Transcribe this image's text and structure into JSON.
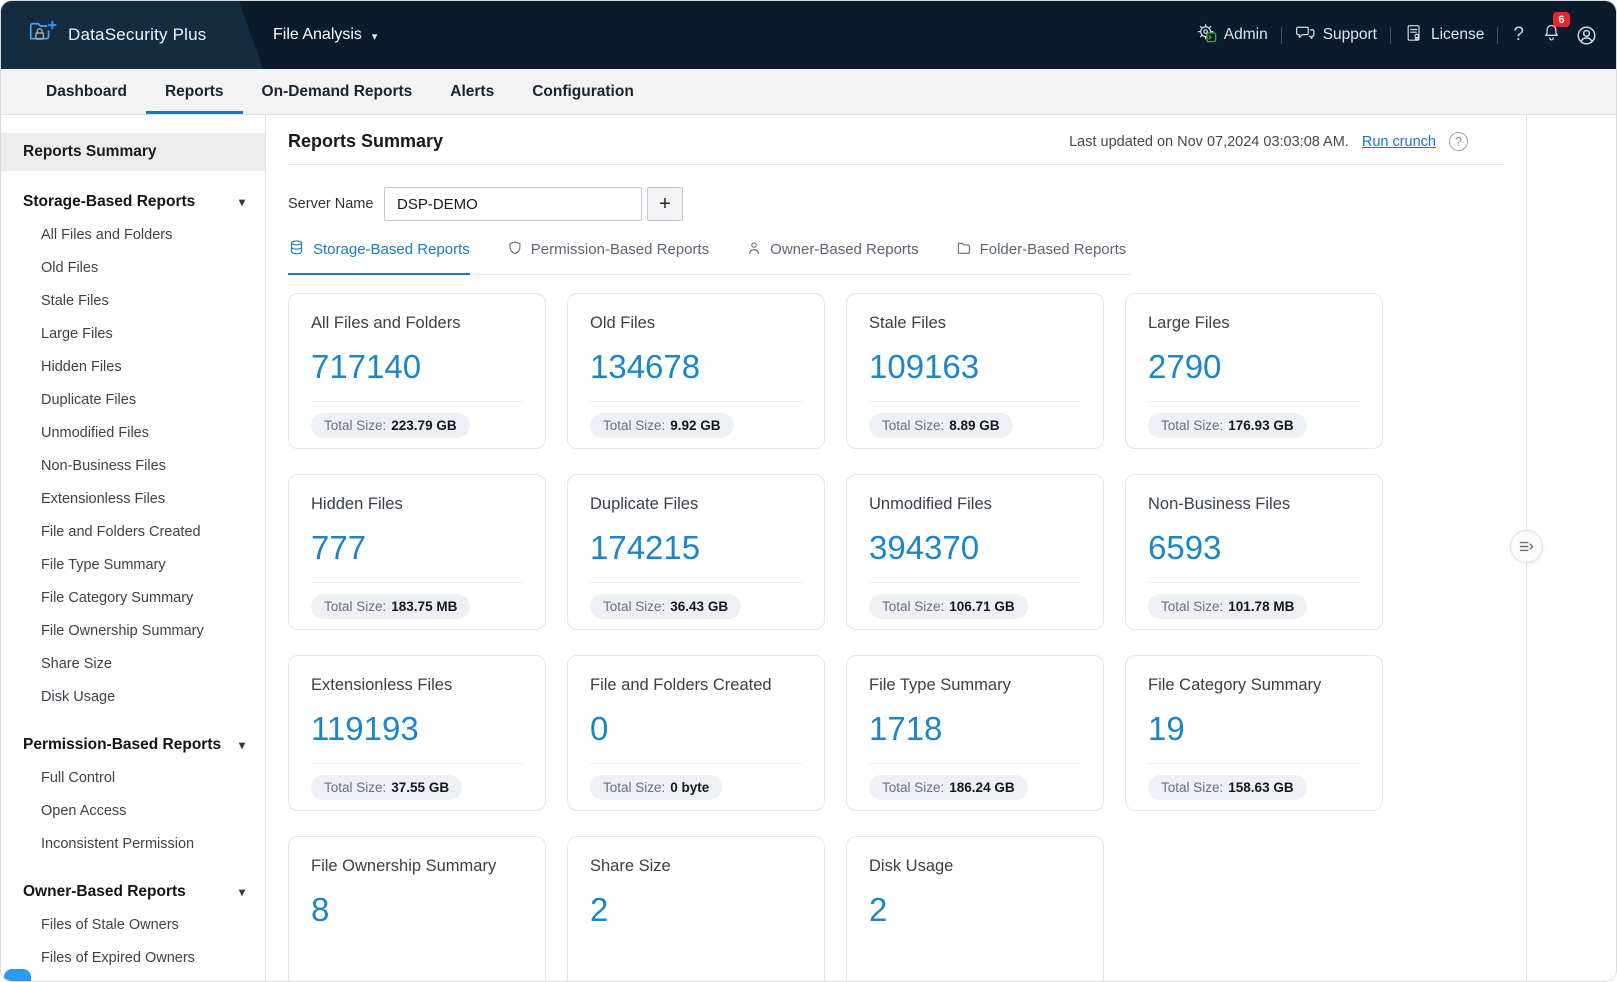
{
  "header": {
    "product_name": "DataSecurity Plus",
    "module_name": "File Analysis",
    "menu": [
      {
        "label": "Admin",
        "icon": "admin-gear-icon"
      },
      {
        "label": "Support",
        "icon": "support-chat-icon"
      },
      {
        "label": "License",
        "icon": "license-icon"
      }
    ],
    "help_label": "?",
    "notification_count": "6",
    "colors": {
      "header_bg": "#0a1b2b",
      "header_segment_bg": "#152b40",
      "notification_red": "#e8262c",
      "admin_badge_green": "#43b649"
    }
  },
  "nav": {
    "tabs": [
      {
        "label": "Dashboard",
        "active": false
      },
      {
        "label": "Reports",
        "active": true
      },
      {
        "label": "On-Demand Reports",
        "active": false
      },
      {
        "label": "Alerts",
        "active": false
      },
      {
        "label": "Configuration",
        "active": false
      }
    ]
  },
  "sidebar": {
    "summary_label": "Reports Summary",
    "sections": [
      {
        "label": "Storage-Based Reports",
        "items": [
          "All Files and Folders",
          "Old Files",
          "Stale Files",
          "Large Files",
          "Hidden Files",
          "Duplicate Files",
          "Unmodified Files",
          "Non-Business Files",
          "Extensionless Files",
          "File and Folders Created",
          "File Type Summary",
          "File Category Summary",
          "File Ownership Summary",
          "Share Size",
          "Disk Usage"
        ]
      },
      {
        "label": "Permission-Based Reports",
        "items": [
          "Full Control",
          "Open Access",
          "Inconsistent Permission"
        ]
      },
      {
        "label": "Owner-Based Reports",
        "items": [
          "Files of Stale Owners",
          "Files of Expired Owners"
        ]
      }
    ]
  },
  "main": {
    "title": "Reports Summary",
    "last_updated": "Last updated on Nov 07,2024 03:03:08 AM.",
    "run_crunch_label": "Run crunch",
    "server_name_label": "Server Name",
    "server_name_value": "DSP-DEMO",
    "add_server_label": "+",
    "report_tabs": [
      {
        "label": "Storage-Based Reports",
        "icon": "database-icon",
        "active": true
      },
      {
        "label": "Permission-Based Reports",
        "icon": "shield-icon",
        "active": false
      },
      {
        "label": "Owner-Based Reports",
        "icon": "person-icon",
        "active": false
      },
      {
        "label": "Folder-Based Reports",
        "icon": "folder-icon",
        "active": false
      }
    ],
    "size_label": "Total Size:",
    "cards": [
      {
        "title": "All Files and Folders",
        "value": "717140",
        "size": "223.79 GB"
      },
      {
        "title": "Old Files",
        "value": "134678",
        "size": "9.92 GB"
      },
      {
        "title": "Stale Files",
        "value": "109163",
        "size": "8.89 GB"
      },
      {
        "title": "Large Files",
        "value": "2790",
        "size": "176.93 GB"
      },
      {
        "title": "Hidden Files",
        "value": "777",
        "size": "183.75 MB"
      },
      {
        "title": "Duplicate Files",
        "value": "174215",
        "size": "36.43 GB"
      },
      {
        "title": "Unmodified Files",
        "value": "394370",
        "size": "106.71 GB"
      },
      {
        "title": "Non-Business Files",
        "value": "6593",
        "size": "101.78 MB"
      },
      {
        "title": "Extensionless Files",
        "value": "119193",
        "size": "37.55 GB"
      },
      {
        "title": "File and Folders Created",
        "value": "0",
        "size": "0 byte"
      },
      {
        "title": "File Type Summary",
        "value": "1718",
        "size": "186.24 GB"
      },
      {
        "title": "File Category Summary",
        "value": "19",
        "size": "158.63 GB"
      },
      {
        "title": "File Ownership Summary",
        "value": "8",
        "size": ""
      },
      {
        "title": "Share Size",
        "value": "2",
        "size": ""
      },
      {
        "title": "Disk Usage",
        "value": "2",
        "size": ""
      }
    ],
    "colors": {
      "accent_blue": "#1a73d4",
      "value_blue": "#1b85c9"
    }
  }
}
